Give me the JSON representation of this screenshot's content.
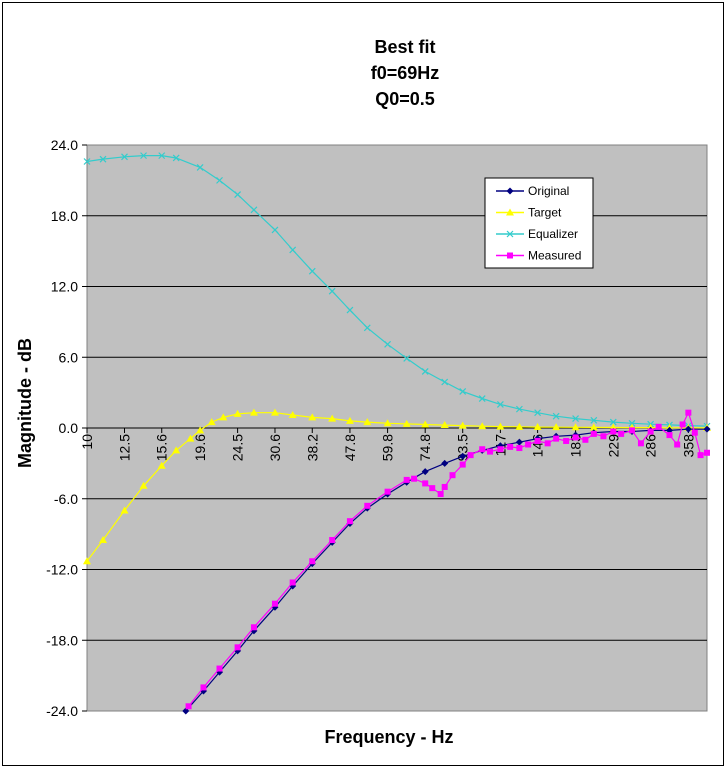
{
  "chart_data": {
    "type": "line",
    "title": [
      "Best fit",
      "f0=69Hz",
      "Q0=0.5"
    ],
    "xlabel": "Frequency - Hz",
    "ylabel": "Magnitude - dB",
    "x_scale": "log",
    "xlim": [
      10,
      400
    ],
    "ylim": [
      -24,
      24
    ],
    "yticks": [
      "24.0",
      "18.0",
      "12.0",
      "6.0",
      "0.0",
      "-6.0",
      "-12.0",
      "-18.0",
      "-24.0"
    ],
    "xticks": [
      "10",
      "12.5",
      "15.6",
      "19.6",
      "24.5",
      "30.6",
      "38.2",
      "47.8",
      "59.8",
      "74.8",
      "93.5",
      "117",
      "146",
      "183",
      "229",
      "286",
      "358"
    ],
    "grid": "horizontal",
    "plot_background": "#c0c0c0",
    "legend_position": "top-right",
    "series": [
      {
        "name": "Original",
        "color": "#000080",
        "marker": "diamond",
        "x": [
          18,
          20,
          22,
          24.5,
          27,
          30.6,
          34,
          38.2,
          43,
          47.8,
          53,
          59.8,
          67,
          74.8,
          84,
          93.5,
          105,
          117,
          131,
          146,
          163,
          183,
          204,
          229,
          256,
          286,
          320,
          358,
          400
        ],
        "y": [
          -24.0,
          -22.3,
          -20.7,
          -18.9,
          -17.2,
          -15.2,
          -13.4,
          -11.5,
          -9.7,
          -8.1,
          -6.8,
          -5.6,
          -4.6,
          -3.7,
          -3.0,
          -2.4,
          -1.9,
          -1.5,
          -1.2,
          -0.9,
          -0.7,
          -0.6,
          -0.4,
          -0.3,
          -0.3,
          -0.2,
          -0.2,
          -0.1,
          -0.1
        ]
      },
      {
        "name": "Target",
        "color": "#ffff00",
        "marker": "triangle",
        "x": [
          10,
          11,
          12.5,
          14,
          15.6,
          17,
          18.5,
          19.6,
          21,
          22.5,
          24.5,
          27,
          30.6,
          34,
          38.2,
          43,
          47.8,
          53,
          59.8,
          67,
          74.8,
          84,
          93.5,
          105,
          117,
          131,
          146,
          163,
          183,
          204,
          229,
          256,
          286,
          320,
          358,
          400
        ],
        "y": [
          -11.3,
          -9.5,
          -7.0,
          -4.9,
          -3.2,
          -1.9,
          -0.9,
          -0.2,
          0.5,
          0.9,
          1.2,
          1.3,
          1.3,
          1.1,
          0.9,
          0.8,
          0.6,
          0.5,
          0.4,
          0.35,
          0.3,
          0.25,
          0.2,
          0.15,
          0.12,
          0.1,
          0.08,
          0.07,
          0.06,
          0.05,
          0.04,
          0.03,
          0.03,
          0.02,
          0.02,
          0.01
        ]
      },
      {
        "name": "Equalizer",
        "color": "#33cccc",
        "marker": "x",
        "x": [
          10,
          11,
          12.5,
          14,
          15.6,
          17,
          19.6,
          22,
          24.5,
          27,
          30.6,
          34,
          38.2,
          43,
          47.8,
          53,
          59.8,
          67,
          74.8,
          84,
          93.5,
          105,
          117,
          131,
          146,
          163,
          183,
          204,
          229,
          256,
          286,
          320,
          358,
          400
        ],
        "y": [
          22.6,
          22.8,
          23.0,
          23.1,
          23.1,
          22.9,
          22.1,
          21.0,
          19.8,
          18.5,
          16.8,
          15.1,
          13.3,
          11.6,
          10.0,
          8.5,
          7.1,
          5.9,
          4.8,
          3.9,
          3.1,
          2.5,
          2.0,
          1.6,
          1.3,
          1.0,
          0.8,
          0.65,
          0.5,
          0.4,
          0.32,
          0.26,
          0.2,
          0.16
        ]
      },
      {
        "name": "Measured",
        "color": "#ff00ff",
        "marker": "square",
        "x": [
          18.3,
          20,
          22,
          24.5,
          27,
          30.6,
          34,
          38.2,
          43,
          47.8,
          53,
          59.8,
          67,
          70,
          74.8,
          78,
          82,
          84,
          88,
          93.5,
          98,
          105,
          110,
          117,
          124,
          131,
          138,
          146,
          155,
          163,
          173,
          183,
          194,
          204,
          216,
          229,
          240,
          256,
          270,
          286,
          300,
          320,
          335,
          346,
          358,
          372,
          385,
          400
        ],
        "y": [
          -23.6,
          -22.0,
          -20.4,
          -18.6,
          -16.9,
          -14.9,
          -13.1,
          -11.3,
          -9.5,
          -7.9,
          -6.6,
          -5.4,
          -4.4,
          -4.3,
          -4.7,
          -5.1,
          -5.6,
          -5.0,
          -4.0,
          -3.1,
          -2.3,
          -1.8,
          -2.0,
          -1.8,
          -1.6,
          -1.7,
          -1.4,
          -1.1,
          -1.3,
          -0.9,
          -1.1,
          -0.8,
          -1.0,
          -0.5,
          -0.7,
          -0.3,
          -0.5,
          -0.2,
          -1.3,
          -0.3,
          0.1,
          -0.6,
          -1.4,
          0.3,
          1.3,
          -0.4,
          -2.3,
          -2.1
        ]
      }
    ]
  }
}
